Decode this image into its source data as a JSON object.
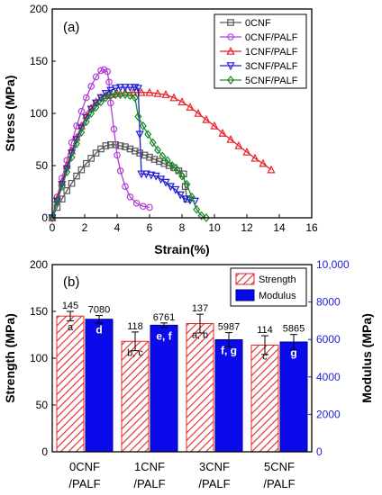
{
  "chart_data": [
    {
      "type": "line",
      "panel_label": "(a)",
      "xlabel": "Strain(%)",
      "ylabel": "Stress (MPa)",
      "xlim": [
        0,
        16
      ],
      "ylim": [
        0,
        200
      ],
      "xticks": [
        "0",
        "2",
        "4",
        "6",
        "8",
        "10",
        "12",
        "14",
        "16"
      ],
      "yticks": [
        "0",
        "50",
        "100",
        "150",
        "200"
      ],
      "legend_position": "top-right",
      "series": [
        {
          "name": "0CNF",
          "color": "#595959",
          "marker": "square",
          "x": [
            0,
            0.3,
            0.6,
            0.9,
            1.2,
            1.5,
            1.8,
            2.1,
            2.4,
            2.7,
            3.0,
            3.3,
            3.6,
            3.9,
            4.2,
            4.5,
            4.8,
            5.1,
            5.4,
            5.7,
            6.0,
            6.3,
            6.6,
            6.9,
            7.2,
            7.5,
            7.8,
            8.1,
            8.2,
            8.3
          ],
          "y": [
            0,
            10,
            18,
            26,
            33,
            40,
            46,
            52,
            57,
            62,
            66,
            69,
            70,
            70,
            69,
            68,
            66,
            64,
            62,
            60,
            58,
            56,
            54,
            52,
            50,
            48,
            45,
            42,
            30,
            18
          ]
        },
        {
          "name": "0CNF/PALF",
          "color": "#b23fd6",
          "marker": "circle",
          "x": [
            0,
            0.3,
            0.6,
            0.9,
            1.2,
            1.5,
            1.8,
            2.1,
            2.4,
            2.7,
            3.0,
            3.2,
            3.4,
            3.5,
            3.6,
            3.8,
            4.0,
            4.2,
            4.5,
            4.8,
            5.2,
            5.6,
            6.0
          ],
          "y": [
            0,
            20,
            38,
            55,
            72,
            88,
            102,
            115,
            126,
            135,
            141,
            142,
            140,
            130,
            110,
            85,
            60,
            45,
            30,
            20,
            14,
            11,
            10
          ]
        },
        {
          "name": "1CNF/PALF",
          "color": "#e8232a",
          "marker": "triangle-up",
          "x": [
            0,
            0.3,
            0.6,
            0.9,
            1.2,
            1.5,
            1.8,
            2.1,
            2.4,
            2.7,
            3.0,
            3.3,
            3.6,
            4.0,
            4.5,
            5.0,
            5.5,
            6.0,
            6.5,
            7.0,
            7.5,
            8.0,
            8.5,
            9.0,
            9.5,
            10.0,
            10.5,
            11.0,
            11.5,
            12.0,
            12.5,
            13.0,
            13.5
          ],
          "y": [
            0,
            18,
            34,
            50,
            64,
            77,
            88,
            98,
            105,
            111,
            115,
            117,
            118,
            119,
            120,
            120,
            120,
            120,
            119,
            118,
            115,
            111,
            106,
            100,
            94,
            88,
            81,
            75,
            69,
            63,
            57,
            52,
            46
          ]
        },
        {
          "name": "3CNF/PALF",
          "color": "#1f1fd4",
          "marker": "triangle-down",
          "x": [
            0,
            0.3,
            0.6,
            0.9,
            1.2,
            1.5,
            1.8,
            2.1,
            2.4,
            2.7,
            3.0,
            3.3,
            3.6,
            3.9,
            4.2,
            4.5,
            4.8,
            5.1,
            5.3,
            5.4,
            5.5,
            5.8,
            6.1,
            6.4,
            6.7,
            7.0,
            7.3,
            7.6,
            7.9,
            8.2,
            8.5,
            8.8
          ],
          "y": [
            0,
            16,
            32,
            47,
            62,
            75,
            86,
            96,
            104,
            110,
            115,
            119,
            122,
            124,
            125,
            125,
            125,
            125,
            124,
            80,
            42,
            42,
            41,
            40,
            37,
            34,
            30,
            27,
            22,
            18,
            17,
            16
          ]
        },
        {
          "name": "5CNF/PALF",
          "color": "#1a8a2a",
          "marker": "diamond",
          "x": [
            0,
            0.3,
            0.6,
            0.9,
            1.2,
            1.5,
            1.8,
            2.1,
            2.4,
            2.7,
            3.0,
            3.3,
            3.6,
            3.9,
            4.2,
            4.5,
            4.8,
            5.1,
            5.3,
            5.6,
            5.9,
            6.2,
            6.5,
            6.8,
            7.1,
            7.4,
            7.7,
            8.0,
            8.3,
            8.6,
            8.9,
            9.2,
            9.5
          ],
          "y": [
            0,
            15,
            30,
            44,
            58,
            71,
            82,
            92,
            100,
            106,
            111,
            115,
            117,
            118,
            118,
            118,
            117,
            115,
            97,
            88,
            80,
            72,
            65,
            59,
            55,
            50,
            46,
            40,
            32,
            20,
            8,
            2,
            0
          ]
        }
      ]
    },
    {
      "type": "bar",
      "panel_label": "(b)",
      "categories": [
        "0CNF\n/PALF",
        "1CNF\n/PALF",
        "3CNF\n/PALF",
        "5CNF\n/PALF"
      ],
      "ylabel": "Strength (MPa)",
      "y2label": "Modulus (MPa)",
      "ylim": [
        0,
        200
      ],
      "y2lim": [
        0,
        10000
      ],
      "yticks": [
        "0",
        "50",
        "100",
        "150",
        "200"
      ],
      "y2ticks": [
        "0",
        "2000",
        "4000",
        "6000",
        "8000",
        "10,000"
      ],
      "legend_position": "top-right",
      "series": [
        {
          "name": "Strength",
          "axis": "left",
          "color": "#e8232a",
          "pattern": "hatch",
          "values": [
            145,
            118,
            137,
            114
          ],
          "errors": [
            5,
            10,
            10,
            10
          ],
          "value_labels": [
            "145",
            "118",
            "137",
            "114"
          ],
          "group_letters": [
            "a",
            "b, c",
            "a, b",
            "c"
          ]
        },
        {
          "name": "Modulus",
          "axis": "right",
          "color": "#0a0aeb",
          "pattern": "solid",
          "values": [
            7080,
            6761,
            5987,
            5865
          ],
          "errors": [
            200,
            120,
            380,
            400
          ],
          "value_labels": [
            "7080",
            "6761",
            "5987",
            "5865"
          ],
          "group_letters": [
            "d",
            "e, f",
            "f, g",
            "g"
          ]
        }
      ]
    }
  ]
}
